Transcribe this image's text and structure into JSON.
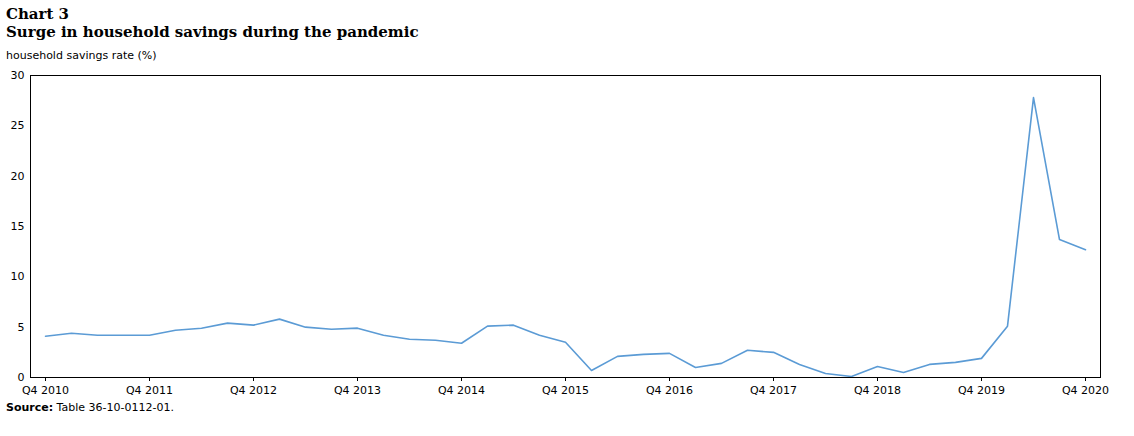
{
  "chart_data": {
    "type": "line",
    "title": "Chart 3",
    "subtitle": "Surge in household savings during the pandemic",
    "y_label": "household savings rate (%)",
    "source": "Source: Table 36-10-0112-01.",
    "categories": [
      "Q4 2010",
      null,
      null,
      null,
      "Q4 2011",
      null,
      null,
      null,
      "Q4 2012",
      null,
      null,
      null,
      "Q4 2013",
      null,
      null,
      null,
      "Q4 2014",
      null,
      null,
      null,
      "Q4 2015",
      null,
      null,
      null,
      "Q4 2016",
      null,
      null,
      null,
      "Q4 2017",
      null,
      null,
      null,
      "Q4 2018",
      null,
      null,
      null,
      "Q4 2019",
      null,
      null,
      null,
      "Q4 2020"
    ],
    "values": [
      4.1,
      4.4,
      4.2,
      4.2,
      4.2,
      4.7,
      4.9,
      5.4,
      5.2,
      5.8,
      5.0,
      4.8,
      4.9,
      4.2,
      3.8,
      3.7,
      3.4,
      5.1,
      5.2,
      4.2,
      3.5,
      0.7,
      2.1,
      2.3,
      2.4,
      1.0,
      1.4,
      2.7,
      2.5,
      1.3,
      0.4,
      0.1,
      1.1,
      0.5,
      1.3,
      1.5,
      1.9,
      5.1,
      27.8,
      13.7,
      12.7
    ],
    "color": "#5b9bd5",
    "ylim": [
      0,
      30
    ],
    "yticks": [
      0,
      5,
      10,
      15,
      20,
      25,
      30
    ],
    "grid": false
  }
}
